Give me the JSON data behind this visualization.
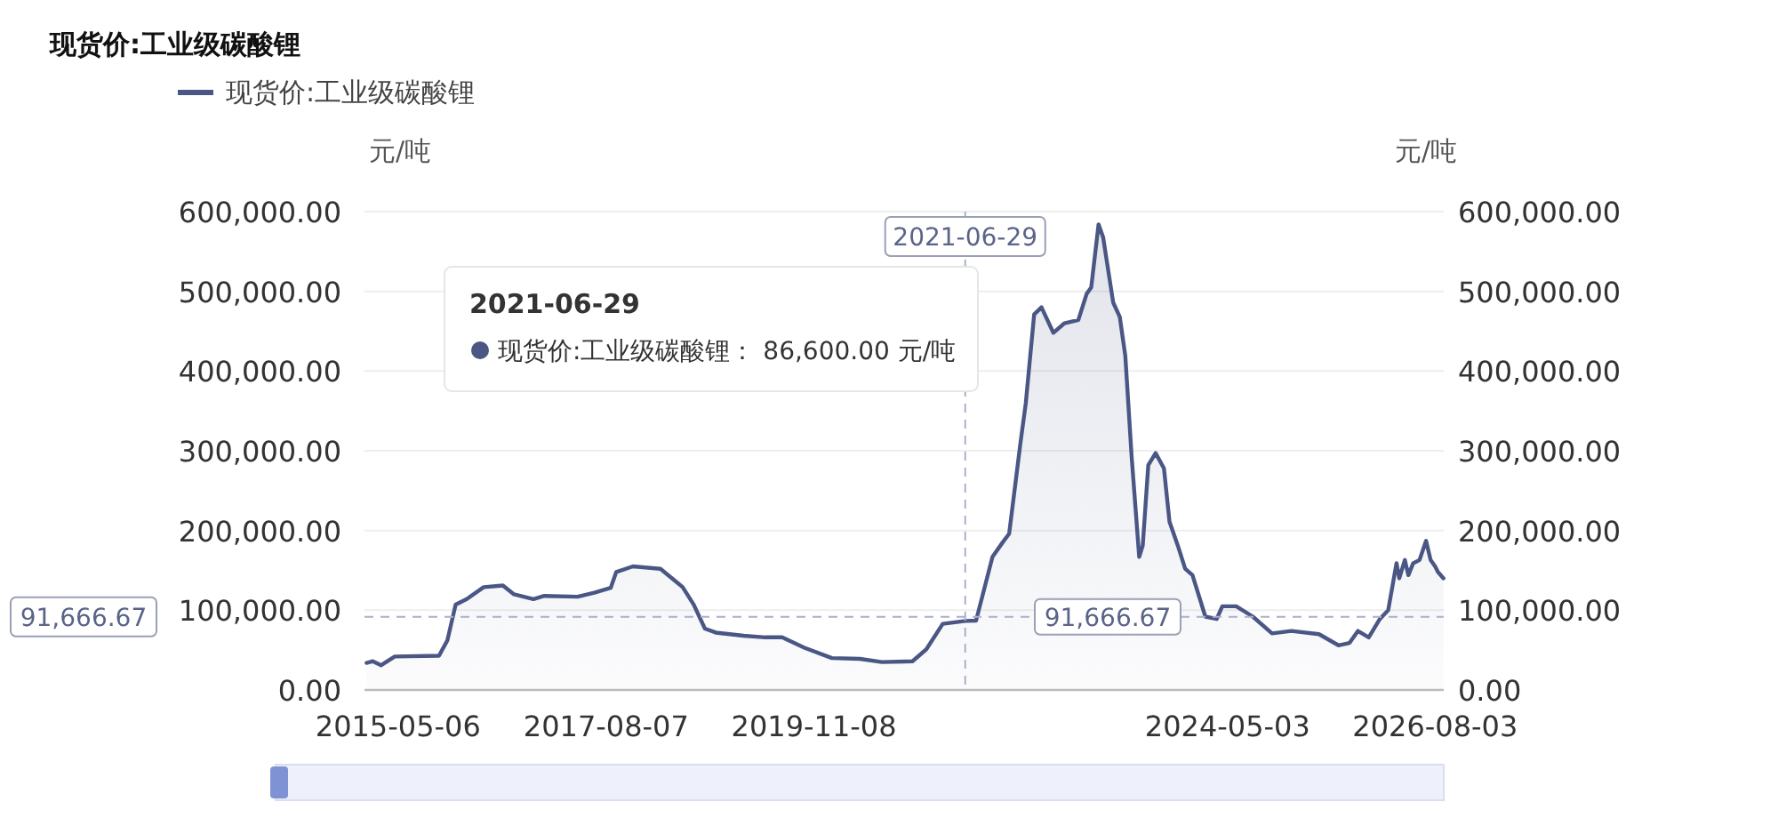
{
  "chart_data": {
    "type": "area",
    "title": "现货价:工业级碳酸锂",
    "ylabel": "元/吨",
    "y2label": "元/吨",
    "x": [
      "2015-01-01",
      "2015-01-26",
      "2015-02-28",
      "2015-04-23",
      "2015-10-15",
      "2015-11-17",
      "2015-12-20",
      "2016-02-02",
      "2016-04-09",
      "2016-06-24",
      "2016-08-07",
      "2016-10-23",
      "2016-12-05",
      "2017-04-16",
      "2017-06-21",
      "2017-08-25",
      "2017-09-16",
      "2017-11-21",
      "2018-03-10",
      "2018-06-06",
      "2018-07-20",
      "2018-09-02",
      "2018-10-15",
      "2019-02-02",
      "2019-04-30",
      "2019-07-05",
      "2019-10-01",
      "2020-01-18",
      "2020-05-08",
      "2020-08-03",
      "2020-12-02",
      "2021-01-26",
      "2021-04-01",
      "2021-06-29",
      "2021-08-11",
      "2021-10-15",
      "2021-11-24",
      "2021-12-20",
      "2022-02-02",
      "2022-02-24",
      "2022-03-29",
      "2022-04-27",
      "2022-06-13",
      "2022-07-27",
      "2022-09-20",
      "2022-10-23",
      "2022-11-10",
      "2022-12-09",
      "2022-12-27",
      "2023-02-05",
      "2023-03-03",
      "2023-03-25",
      "2023-04-19",
      "2023-05-19",
      "2023-06-02",
      "2023-06-24",
      "2023-07-23",
      "2023-08-25",
      "2023-09-16",
      "2023-10-19",
      "2023-11-17",
      "2023-12-16",
      "2024-02-05",
      "2024-03-21",
      "2024-04-12",
      "2024-06-06",
      "2024-08-11",
      "2024-10-26",
      "2025-01-11",
      "2025-04-30",
      "2025-07-16",
      "2025-08-29",
      "2025-10-01",
      "2025-11-13",
      "2025-12-27",
      "2026-01-29",
      "2026-03-03",
      "2026-03-14",
      "2026-04-05",
      "2026-04-19",
      "2026-05-08",
      "2026-06-02",
      "2026-06-28",
      "2026-07-16",
      "2026-08-03",
      "2026-08-14",
      "2026-09-05"
    ],
    "series": [
      {
        "name": "现货价:工业级碳酸锂",
        "color": "#4a5785",
        "values": [
          34000,
          36000,
          31000,
          42000,
          43000,
          62000,
          107000,
          114000,
          129000,
          131000,
          120000,
          114000,
          118000,
          117000,
          122000,
          128000,
          148000,
          155000,
          152000,
          129000,
          107000,
          77000,
          72000,
          68000,
          66000,
          66000,
          53000,
          40000,
          39000,
          35000,
          36000,
          51000,
          83000,
          86600,
          87000,
          167000,
          185000,
          196000,
          308000,
          360000,
          471000,
          480000,
          448000,
          460000,
          464000,
          497000,
          505000,
          584000,
          568000,
          486000,
          468000,
          419000,
          293000,
          167000,
          181000,
          282000,
          297000,
          278000,
          211000,
          181000,
          152000,
          144000,
          92000,
          89000,
          105000,
          105000,
          92000,
          71000,
          74000,
          70000,
          56000,
          59000,
          74000,
          66000,
          89000,
          100000,
          159000,
          140000,
          163000,
          144000,
          159000,
          163000,
          187000,
          163000,
          155000,
          148000,
          140000
        ]
      }
    ],
    "xlim": [
      "2014-12-24",
      "2026-09-06"
    ],
    "xticks": [
      "2015-05-06",
      "2017-08-07",
      "2019-11-08",
      "2024-05-03",
      "2026-08-03"
    ],
    "ylim": [
      0,
      600000
    ],
    "yticks": [
      {
        "value": 0,
        "label": "0.00"
      },
      {
        "value": 100000,
        "label": "100,000.00"
      },
      {
        "value": 200000,
        "label": "200,000.00"
      },
      {
        "value": 300000,
        "label": "300,000.00"
      },
      {
        "value": 400000,
        "label": "400,000.00"
      },
      {
        "value": 500000,
        "label": "500,000.00"
      },
      {
        "value": 600000,
        "label": "600,000.00"
      }
    ],
    "y2lim": [
      0,
      600000
    ],
    "y2ticks": [
      {
        "value": 0,
        "label": "0.00"
      },
      {
        "value": 100000,
        "label": "100,000.00"
      },
      {
        "value": 200000,
        "label": "200,000.00"
      },
      {
        "value": 300000,
        "label": "300,000.00"
      },
      {
        "value": 400000,
        "label": "400,000.00"
      },
      {
        "value": 500000,
        "label": "500,000.00"
      },
      {
        "value": 600000,
        "label": "600,000.00"
      }
    ],
    "grid": "y",
    "legend": "top left",
    "marker": "none",
    "line_style": "solid",
    "ref_lines": [
      {
        "axis": "y",
        "value": 91666.67,
        "label": "91,666.67",
        "color": "#aab0cc",
        "line_style": "dashed"
      },
      {
        "axis": "x",
        "value": "2021-06-29",
        "label": "2021-06-29",
        "color": "#aab0cc",
        "line_style": "dashed"
      }
    ],
    "annotations": [
      "2021-06-29",
      "现货价:工业级碳酸锂： 86,600.00 元/吨"
    ]
  }
}
